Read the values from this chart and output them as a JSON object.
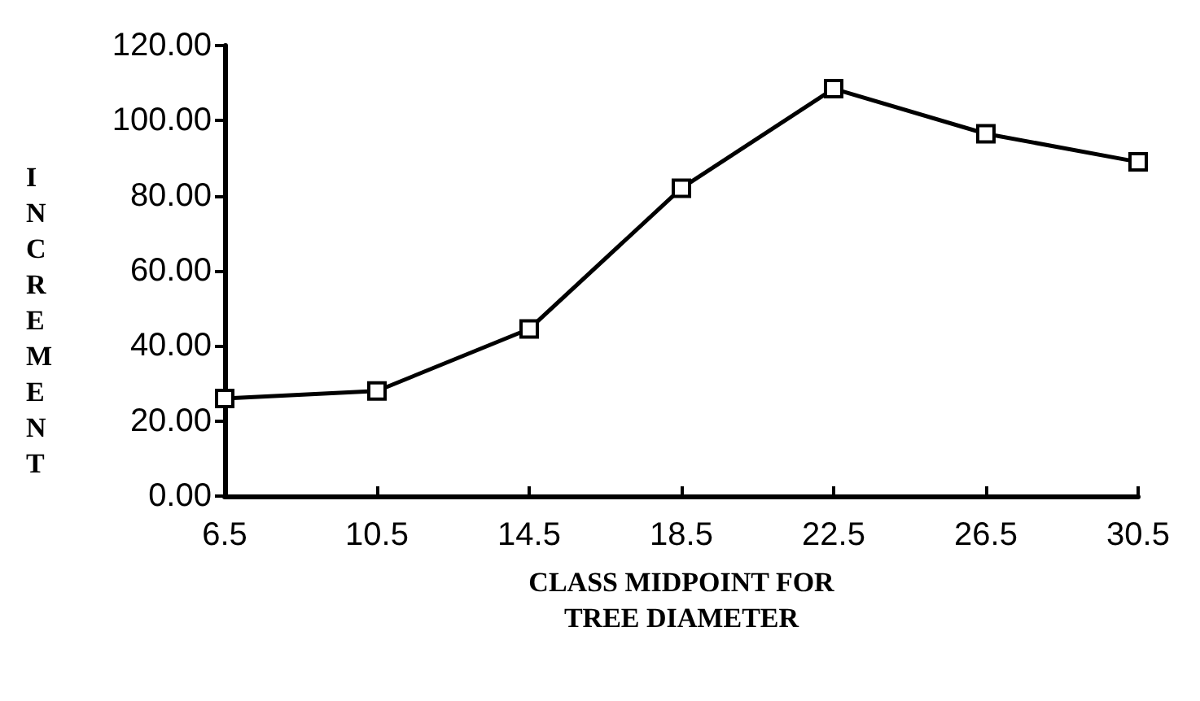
{
  "chart_data": {
    "type": "line",
    "xlabel": "CLASS MIDPOINT FOR\nTREE DIAMETER",
    "ylabel": "INCREMENT",
    "x": [
      6.5,
      10.5,
      14.5,
      18.5,
      22.5,
      26.5,
      30.5
    ],
    "series": [
      {
        "color": "#000000",
        "values": [
          26,
          28,
          44.5,
          82,
          108.5,
          96.5,
          89
        ]
      }
    ],
    "xlim": [
      6.5,
      30.5
    ],
    "xticks": [
      6.5,
      10.5,
      14.5,
      18.5,
      22.5,
      26.5,
      30.5
    ],
    "ylim": [
      0,
      120
    ],
    "yticks": [
      {
        "value": 0,
        "label": "0.00"
      },
      {
        "value": 20,
        "label": "20.00"
      },
      {
        "value": 40,
        "label": "40.00"
      },
      {
        "value": 60,
        "label": "60.00"
      },
      {
        "value": 80,
        "label": "80.00"
      },
      {
        "value": 100,
        "label": "100.00"
      },
      {
        "value": 120,
        "label": "120.00"
      }
    ],
    "grid": false,
    "marker": "square",
    "line_style": "solid"
  }
}
